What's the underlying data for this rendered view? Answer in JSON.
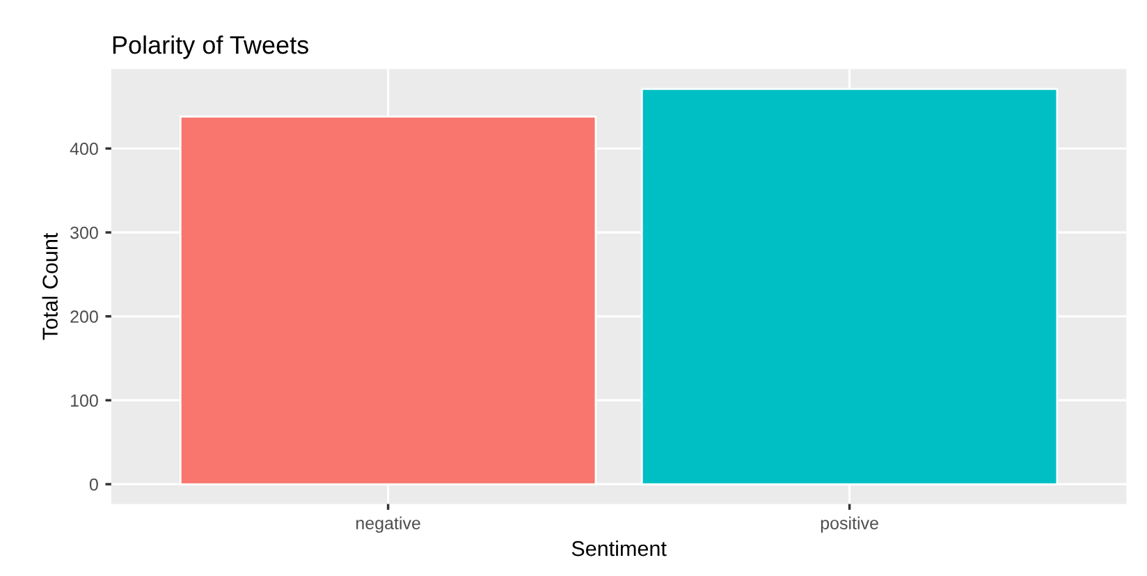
{
  "chart_data": {
    "type": "bar",
    "title": "Polarity of Tweets",
    "xlabel": "Sentiment",
    "ylabel": "Total Count",
    "categories": [
      "negative",
      "positive"
    ],
    "values": [
      438,
      471
    ],
    "colors": [
      "#f8766d",
      "#00bfc4"
    ],
    "ylim": [
      -23.6,
      494.6
    ],
    "yticks": [
      0,
      100,
      200,
      300,
      400
    ],
    "grid": true,
    "legend": false
  }
}
